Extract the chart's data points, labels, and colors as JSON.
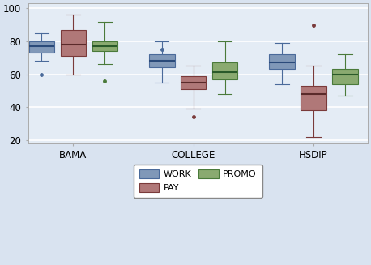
{
  "groups": [
    "BAMA",
    "COLLEGE",
    "HSDIP"
  ],
  "series": [
    "WORK",
    "PAY",
    "PROMO"
  ],
  "colors": [
    "#8098b8",
    "#b07878",
    "#8aaa70"
  ],
  "edge_colors": [
    "#4a6a9a",
    "#7a3a3a",
    "#4a7a3a"
  ],
  "median_colors": [
    "#2a4a7a",
    "#5a2a2a",
    "#2a5a2a"
  ],
  "flier_colors": [
    "#4a6a9a",
    "#7a3a3a",
    "#4a7a3a"
  ],
  "boxes": {
    "BAMA": {
      "WORK": {
        "q1": 73,
        "median": 77,
        "q3": 80,
        "whislo": 68,
        "whishi": 85,
        "fliers": [
          60
        ]
      },
      "PAY": {
        "q1": 71,
        "median": 78,
        "q3": 87,
        "whislo": 60,
        "whishi": 96,
        "fliers": []
      },
      "PROMO": {
        "q1": 74,
        "median": 77,
        "q3": 80,
        "whislo": 66,
        "whishi": 92,
        "fliers": [
          56
        ]
      }
    },
    "COLLEGE": {
      "WORK": {
        "q1": 64,
        "median": 68,
        "q3": 72,
        "whislo": 55,
        "whishi": 80,
        "fliers": [
          75
        ]
      },
      "PAY": {
        "q1": 51,
        "median": 55,
        "q3": 59,
        "whislo": 39,
        "whishi": 65,
        "fliers": [
          34
        ]
      },
      "PROMO": {
        "q1": 57,
        "median": 61,
        "q3": 67,
        "whislo": 48,
        "whishi": 80,
        "fliers": []
      }
    },
    "HSDIP": {
      "WORK": {
        "q1": 63,
        "median": 67,
        "q3": 72,
        "whislo": 54,
        "whishi": 79,
        "fliers": []
      },
      "PAY": {
        "q1": 38,
        "median": 48,
        "q3": 53,
        "whislo": 22,
        "whishi": 65,
        "fliers": [
          90
        ]
      },
      "PROMO": {
        "q1": 54,
        "median": 60,
        "q3": 63,
        "whislo": 47,
        "whishi": 72,
        "fliers": []
      }
    }
  },
  "ylim": [
    18,
    103
  ],
  "yticks": [
    20,
    40,
    60,
    80,
    100
  ],
  "group_centers": [
    2,
    6,
    10
  ],
  "group_labels": [
    "BAMA",
    "COLLEGE",
    "HSDIP"
  ],
  "offsets": [
    -1.05,
    0.0,
    1.05
  ],
  "box_width": 0.85,
  "cap_ratio": 0.55,
  "background_color": "#d9e3f0",
  "plot_bg_color": "#e4ecf5",
  "grid_color": "#ffffff",
  "spine_color": "#aaaaaa",
  "figsize": [
    4.58,
    3.27
  ],
  "dpi": 100
}
